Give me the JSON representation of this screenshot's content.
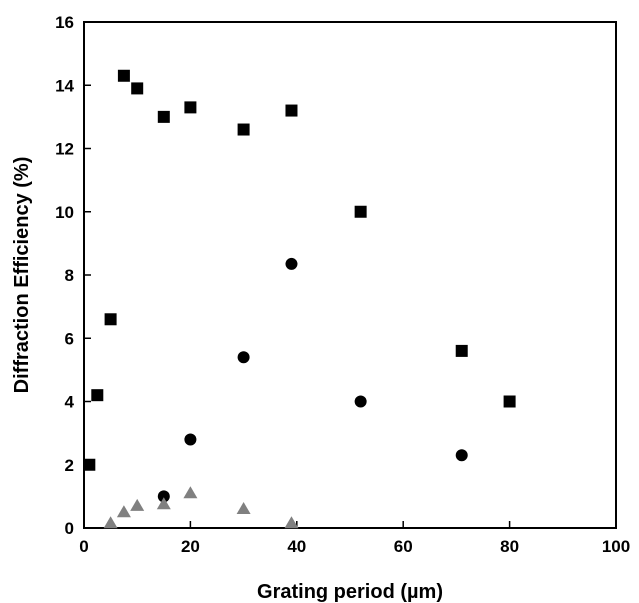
{
  "chart_data": {
    "type": "scatter",
    "title": "",
    "xlabel": "Grating period (µm)",
    "ylabel": "Diffraction Efficiency (%)",
    "xlim": [
      0,
      100
    ],
    "ylim": [
      0,
      16
    ],
    "x_ticks": [
      0,
      20,
      40,
      60,
      80,
      100
    ],
    "y_ticks": [
      0,
      2,
      4,
      6,
      8,
      10,
      12,
      14,
      16
    ],
    "grid": false,
    "legend": "none",
    "series": [
      {
        "marker": "square",
        "color": "#000000",
        "points": [
          {
            "x": 1,
            "y": 2.0
          },
          {
            "x": 2.5,
            "y": 4.2
          },
          {
            "x": 5,
            "y": 6.6
          },
          {
            "x": 7.5,
            "y": 14.3
          },
          {
            "x": 10,
            "y": 13.9
          },
          {
            "x": 15,
            "y": 13.0
          },
          {
            "x": 20,
            "y": 13.3
          },
          {
            "x": 30,
            "y": 12.6
          },
          {
            "x": 39,
            "y": 13.2
          },
          {
            "x": 52,
            "y": 10.0
          },
          {
            "x": 71,
            "y": 5.6
          },
          {
            "x": 80,
            "y": 4.0
          }
        ]
      },
      {
        "marker": "circle",
        "color": "#000000",
        "points": [
          {
            "x": 15,
            "y": 1.0
          },
          {
            "x": 20,
            "y": 2.8
          },
          {
            "x": 30,
            "y": 5.4
          },
          {
            "x": 39,
            "y": 8.35
          },
          {
            "x": 52,
            "y": 4.0
          },
          {
            "x": 71,
            "y": 2.3
          }
        ]
      },
      {
        "marker": "triangle",
        "color": "#808080",
        "points": [
          {
            "x": 5,
            "y": 0.15
          },
          {
            "x": 7.5,
            "y": 0.5
          },
          {
            "x": 10,
            "y": 0.7
          },
          {
            "x": 15,
            "y": 0.75
          },
          {
            "x": 20,
            "y": 1.1
          },
          {
            "x": 30,
            "y": 0.6
          },
          {
            "x": 39,
            "y": 0.15
          }
        ]
      }
    ]
  }
}
